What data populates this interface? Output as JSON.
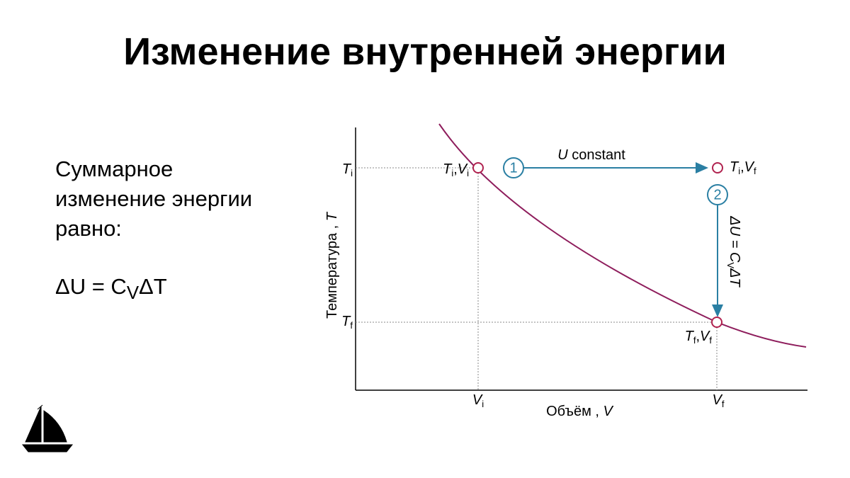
{
  "title": "Изменение внутренней энергии",
  "body": {
    "lines": [
      "Суммарное",
      "изменение энергии",
      "равно:"
    ],
    "formula": [
      {
        "t": "ΔU = C",
        "sub": "V"
      },
      {
        "t": "ΔT"
      }
    ]
  },
  "diagram": {
    "y_axis_label": [
      {
        "t": "Температура , "
      },
      {
        "t": "T",
        "italic": true
      }
    ],
    "x_axis_label": [
      {
        "t": "Объём , "
      },
      {
        "t": "V",
        "italic": true
      }
    ],
    "y_ticks": [
      [
        {
          "t": "T",
          "sub": "i",
          "italic": true
        }
      ],
      [
        {
          "t": "T",
          "sub": "f",
          "italic": true
        }
      ]
    ],
    "x_ticks": [
      [
        {
          "t": "V",
          "sub": "i",
          "italic": true
        }
      ],
      [
        {
          "t": "V",
          "sub": "f",
          "italic": true
        }
      ]
    ],
    "points": [
      [
        {
          "t": "T",
          "sub": "i",
          "italic": true
        },
        {
          "t": ","
        },
        {
          "t": "V",
          "sub": "i",
          "italic": true
        }
      ],
      [
        {
          "t": "T",
          "sub": "i",
          "italic": true
        },
        {
          "t": ","
        },
        {
          "t": "V",
          "sub": "f",
          "italic": true
        }
      ],
      [
        {
          "t": "T",
          "sub": "f",
          "italic": true
        },
        {
          "t": ","
        },
        {
          "t": "V",
          "sub": "f",
          "italic": true
        }
      ]
    ],
    "steps": [
      {
        "number": "1",
        "label": [
          {
            "t": "U",
            "italic": true
          },
          {
            "t": " constant"
          }
        ]
      },
      {
        "number": "2",
        "label": [
          {
            "t": "ΔU = ",
            "italic": true
          },
          {
            "t": "C",
            "sub": "V",
            "italic": true
          },
          {
            "t": "ΔT",
            "italic": true
          }
        ]
      }
    ]
  }
}
